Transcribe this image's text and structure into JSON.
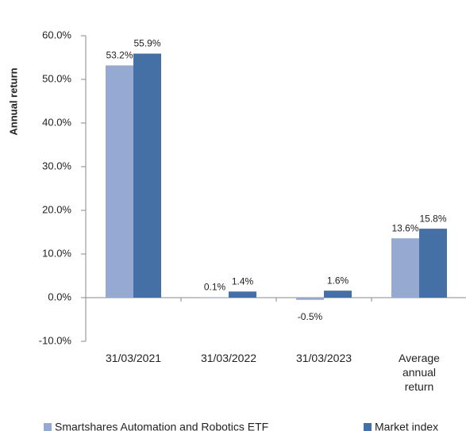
{
  "chart_data": {
    "type": "bar",
    "y_label": "Annual return",
    "categories": [
      "31/03/2021",
      "31/03/2022",
      "31/03/2023",
      "Average annual return"
    ],
    "series": [
      {
        "name": "Smartshares Automation and Robotics ETF",
        "color": "#95a9d1",
        "values": [
          53.2,
          0.1,
          -0.5,
          13.6
        ],
        "value_labels": [
          "53.2%",
          "0.1%",
          "-0.5%",
          "13.6%"
        ]
      },
      {
        "name": "Market index",
        "color": "#4470a6",
        "values": [
          55.9,
          1.4,
          1.6,
          15.8
        ],
        "value_labels": [
          "55.9%",
          "1.4%",
          "1.6%",
          "15.8%"
        ]
      }
    ],
    "ylim": [
      -10,
      60
    ],
    "yticks": [
      {
        "value": -10,
        "label": "-10.0%"
      },
      {
        "value": 0,
        "label": "0.0%"
      },
      {
        "value": 10,
        "label": "10.0%"
      },
      {
        "value": 20,
        "label": "20.0%"
      },
      {
        "value": 30,
        "label": "30.0%"
      },
      {
        "value": 40,
        "label": "40.0%"
      },
      {
        "value": 50,
        "label": "50.0%"
      },
      {
        "value": 60,
        "label": "60.0%"
      }
    ],
    "grid": false
  }
}
